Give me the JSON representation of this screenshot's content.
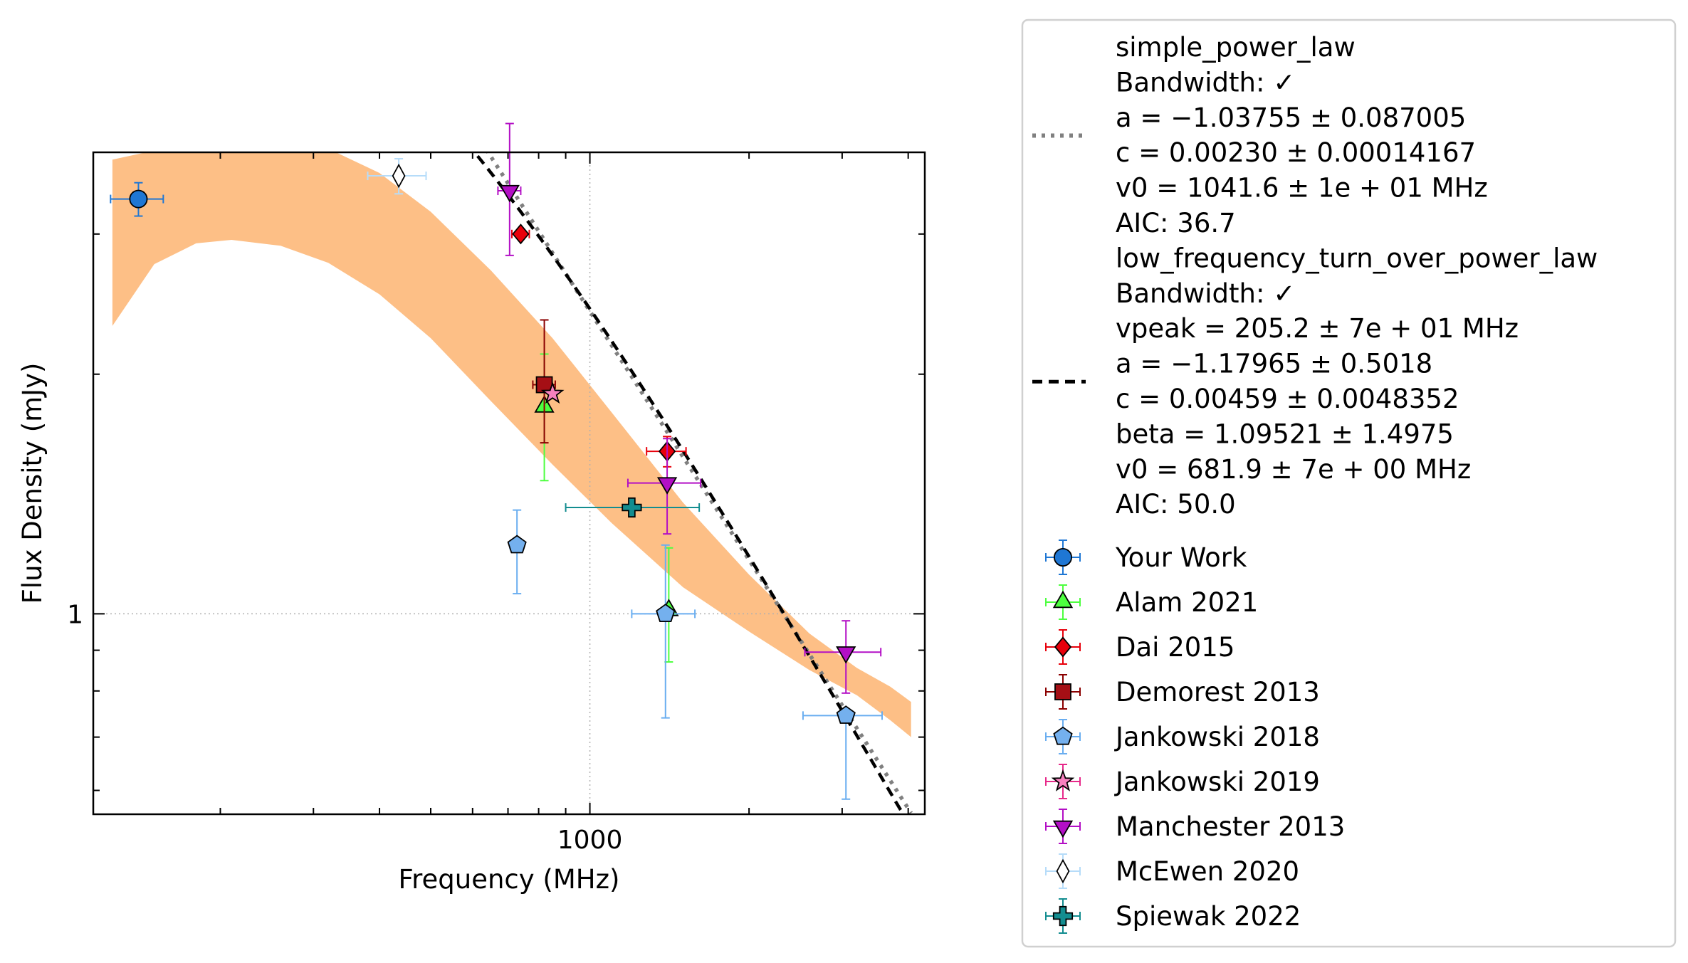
{
  "chart_data": {
    "type": "scatter",
    "xlabel": "Frequency (MHz)",
    "ylabel": "Flux Density (mJy)",
    "x_scale": "log",
    "y_scale": "log",
    "xlim": [
      115,
      4300
    ],
    "ylim": [
      0.56,
      3.8
    ],
    "x_tick_labels": [
      {
        "value": 1000,
        "label": "1000"
      }
    ],
    "y_tick_labels": [
      {
        "value": 1,
        "label": "1"
      }
    ],
    "grid": "dotted lines at x=1000 and y=1 only",
    "legend_position": "outside right",
    "fits": [
      {
        "name": "simple_power_law",
        "style": "dotted",
        "color": "#808080",
        "model": {
          "kind": "simple_power_law",
          "a": -1.03755,
          "c": 0.0023,
          "v0": 1041.6
        },
        "x_range": [
          395,
          4050
        ],
        "legend_lines": [
          "simple_power_law",
          "Bandwidth: ✓",
          "a = −1.03755 ± 0.087005",
          "c = 0.00230 ± 0.00014167",
          "v0 = 1041.6 ± 1e + 01 MHz",
          "AIC: 36.7"
        ]
      },
      {
        "name": "low_frequency_turn_over_power_law",
        "style": "dashed",
        "color": "#000000",
        "model": {
          "kind": "low_frequency_turn_over_power_law",
          "vpeak": 205.2,
          "a": -1.17965,
          "c": 0.00459,
          "beta": 1.09521,
          "v0": 681.9
        },
        "x_range": [
          125,
          4050
        ],
        "band_color": "#fdbf86",
        "band": [
          {
            "x": 125,
            "lo": 2.3,
            "hi": 3.72
          },
          {
            "x": 150,
            "lo": 2.75,
            "hi": 3.82
          },
          {
            "x": 180,
            "lo": 2.92,
            "hi": 3.88
          },
          {
            "x": 210,
            "lo": 2.95,
            "hi": 3.91
          },
          {
            "x": 260,
            "lo": 2.9,
            "hi": 3.93
          },
          {
            "x": 320,
            "lo": 2.76,
            "hi": 3.84
          },
          {
            "x": 400,
            "lo": 2.52,
            "hi": 3.58
          },
          {
            "x": 500,
            "lo": 2.22,
            "hi": 3.2
          },
          {
            "x": 650,
            "lo": 1.85,
            "hi": 2.7
          },
          {
            "x": 850,
            "lo": 1.54,
            "hi": 2.22
          },
          {
            "x": 1100,
            "lo": 1.3,
            "hi": 1.79
          },
          {
            "x": 1500,
            "lo": 1.08,
            "hi": 1.38
          },
          {
            "x": 2000,
            "lo": 0.95,
            "hi": 1.12
          },
          {
            "x": 2600,
            "lo": 0.85,
            "hi": 0.945
          },
          {
            "x": 3200,
            "lo": 0.79,
            "hi": 0.855
          },
          {
            "x": 3700,
            "lo": 0.735,
            "hi": 0.81
          },
          {
            "x": 4050,
            "lo": 0.7,
            "hi": 0.775
          }
        ],
        "legend_lines": [
          "low_frequency_turn_over_power_law",
          "Bandwidth: ✓",
          "vpeak = 205.2 ± 7e + 01 MHz",
          "a = −1.17965 ± 0.5018",
          "c = 0.00459 ± 0.0048352",
          "beta = 1.09521 ± 1.4975",
          "v0 = 681.9 ± 7e + 00 MHz",
          "AIC: 50.0"
        ]
      }
    ],
    "series": [
      {
        "name": "Your Work",
        "marker": "circle",
        "color": "#1f77d4",
        "ecolor": "#1f77d4",
        "points": [
          {
            "x": 140,
            "y": 3.32,
            "xerr": [
              16,
              16
            ],
            "yerr": [
              0.16,
              0.16
            ]
          }
        ]
      },
      {
        "name": "Alam 2021",
        "marker": "triangle-up",
        "color": "#4dff3f",
        "ecolor": "#4dff3f",
        "points": [
          {
            "x": 820,
            "y": 1.82,
            "xerr": [
              0,
              0
            ],
            "yerr": [
              0.35,
              0.3
            ]
          },
          {
            "x": 1410,
            "y": 1.01,
            "xerr": [
              0,
              0
            ],
            "yerr": [
              0.14,
              0.2
            ]
          }
        ]
      },
      {
        "name": "Dai 2015",
        "marker": "diamond",
        "color": "#e8000b",
        "ecolor": "#e8000b",
        "points": [
          {
            "x": 740,
            "y": 3.0,
            "xerr": [
              28,
              28
            ],
            "yerr": [
              0,
              0
            ]
          },
          {
            "x": 1400,
            "y": 1.6,
            "xerr": [
              120,
              120
            ],
            "yerr": [
              0.07,
              0.07
            ]
          }
        ]
      },
      {
        "name": "Demorest 2013",
        "marker": "square",
        "color": "#a50f15",
        "ecolor": "#8b0000",
        "points": [
          {
            "x": 820,
            "y": 1.94,
            "xerr": [
              40,
              40
            ],
            "yerr": [
              0.3,
              0.4
            ]
          }
        ]
      },
      {
        "name": "Jankowski 2018",
        "marker": "pentagon",
        "color": "#74b0ee",
        "ecolor": "#6aaef0",
        "points": [
          {
            "x": 728,
            "y": 1.22,
            "xerr": [
              22,
              22
            ],
            "yerr": [
              0.16,
              0.13
            ]
          },
          {
            "x": 1390,
            "y": 1.0,
            "xerr": [
              190,
              190
            ],
            "yerr": [
              0.26,
              0.22
            ]
          },
          {
            "x": 3050,
            "y": 0.745,
            "xerr": [
              520,
              520
            ],
            "yerr": [
              0.16,
              0
            ]
          }
        ]
      },
      {
        "name": "Jankowski 2019",
        "marker": "star",
        "color": "#f781bf",
        "ecolor": "#e7298a",
        "points": [
          {
            "x": 850,
            "y": 1.89,
            "xerr": [
              0,
              0
            ],
            "yerr": [
              0,
              0
            ]
          }
        ]
      },
      {
        "name": "Manchester 2013",
        "marker": "triangle-down",
        "color": "#b30fc5",
        "ecolor": "#b30fc5",
        "points": [
          {
            "x": 705,
            "y": 3.4,
            "xerr": [
              35,
              35
            ],
            "yerr": [
              0.58,
              0.73
            ]
          },
          {
            "x": 1400,
            "y": 1.46,
            "xerr": [
              220,
              220
            ],
            "yerr": [
              0.2,
              0.2
            ]
          },
          {
            "x": 3050,
            "y": 0.895,
            "xerr": [
              500,
              500
            ],
            "yerr": [
              0.1,
              0.085
            ]
          }
        ]
      },
      {
        "name": "McEwen 2020",
        "marker": "thin-diamond",
        "color": "#ffffff",
        "ecolor": "#b6dcf9",
        "points": [
          {
            "x": 435,
            "y": 3.55,
            "xerr": [
              55,
              55
            ],
            "yerr": [
              0.18,
              0.18
            ]
          }
        ]
      },
      {
        "name": "Spiewak 2022",
        "marker": "plus",
        "color": "#138d90",
        "ecolor": "#138d90",
        "points": [
          {
            "x": 1200,
            "y": 1.36,
            "xerr": [
              300,
              410
            ],
            "yerr": [
              0,
              0
            ]
          }
        ]
      }
    ]
  }
}
